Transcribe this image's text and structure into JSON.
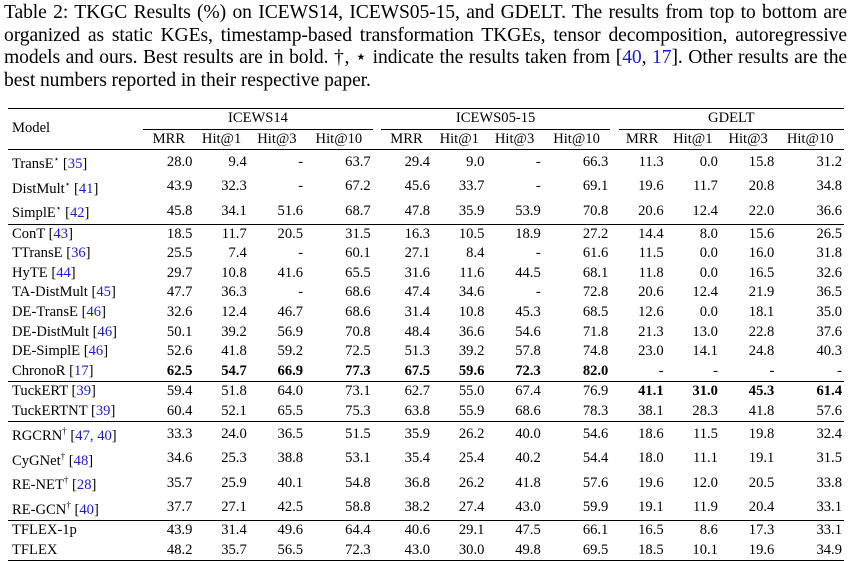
{
  "caption": {
    "part1": "Table 2: TKGC Results (%) on ICEWS14, ICEWS05-15, and GDELT. The results from top to bottom are organized as static KGEs, timestamp-based transformation TKGEs, tensor decomposition, autoregressive models and ours. Best results are in bold. †, ⋆ indicate the results taken from [",
    "ref1": "40",
    "sep": ", ",
    "ref2": "17",
    "part2": "]. Other results are the best numbers reported in their respective paper."
  },
  "table": {
    "model_header": "Model",
    "datasets": [
      "ICEWS14",
      "ICEWS05-15",
      "GDELT"
    ],
    "metrics": [
      "MRR",
      "Hit@1",
      "Hit@3",
      "Hit@10"
    ],
    "groups": [
      [
        {
          "name": "TransE",
          "sup": "⋆",
          "ref": "35",
          "vals": [
            "28.0",
            "9.4",
            "-",
            "63.7",
            "29.4",
            "9.0",
            "-",
            "66.3",
            "11.3",
            "0.0",
            "15.8",
            "31.2"
          ],
          "bold": []
        },
        {
          "name": "DistMult",
          "sup": "⋆",
          "ref": "41",
          "vals": [
            "43.9",
            "32.3",
            "-",
            "67.2",
            "45.6",
            "33.7",
            "-",
            "69.1",
            "19.6",
            "11.7",
            "20.8",
            "34.8"
          ],
          "bold": []
        },
        {
          "name": "SimplE",
          "sup": "⋆",
          "ref": "42",
          "vals": [
            "45.8",
            "34.1",
            "51.6",
            "68.7",
            "47.8",
            "35.9",
            "53.9",
            "70.8",
            "20.6",
            "12.4",
            "22.0",
            "36.6"
          ],
          "bold": []
        }
      ],
      [
        {
          "name": "ConT",
          "sup": "",
          "ref": "43",
          "vals": [
            "18.5",
            "11.7",
            "20.5",
            "31.5",
            "16.3",
            "10.5",
            "18.9",
            "27.2",
            "14.4",
            "8.0",
            "15.6",
            "26.5"
          ],
          "bold": []
        },
        {
          "name": "TTransE",
          "sup": "",
          "ref": "36",
          "vals": [
            "25.5",
            "7.4",
            "-",
            "60.1",
            "27.1",
            "8.4",
            "-",
            "61.6",
            "11.5",
            "0.0",
            "16.0",
            "31.8"
          ],
          "bold": []
        },
        {
          "name": "HyTE",
          "sup": "",
          "ref": "44",
          "vals": [
            "29.7",
            "10.8",
            "41.6",
            "65.5",
            "31.6",
            "11.6",
            "44.5",
            "68.1",
            "11.8",
            "0.0",
            "16.5",
            "32.6"
          ],
          "bold": []
        },
        {
          "name": "TA-DistMult",
          "sup": "",
          "ref": "45",
          "vals": [
            "47.7",
            "36.3",
            "-",
            "68.6",
            "47.4",
            "34.6",
            "-",
            "72.8",
            "20.6",
            "12.4",
            "21.9",
            "36.5"
          ],
          "bold": []
        },
        {
          "name": "DE-TransE",
          "sup": "",
          "ref": "46",
          "vals": [
            "32.6",
            "12.4",
            "46.7",
            "68.6",
            "31.4",
            "10.8",
            "45.3",
            "68.5",
            "12.6",
            "0.0",
            "18.1",
            "35.0"
          ],
          "bold": []
        },
        {
          "name": "DE-DistMult",
          "sup": "",
          "ref": "46",
          "vals": [
            "50.1",
            "39.2",
            "56.9",
            "70.8",
            "48.4",
            "36.6",
            "54.6",
            "71.8",
            "21.3",
            "13.0",
            "22.8",
            "37.6"
          ],
          "bold": []
        },
        {
          "name": "DE-SimplE",
          "sup": "",
          "ref": "46",
          "vals": [
            "52.6",
            "41.8",
            "59.2",
            "72.5",
            "51.3",
            "39.2",
            "57.8",
            "74.8",
            "23.0",
            "14.1",
            "24.8",
            "40.3"
          ],
          "bold": []
        },
        {
          "name": "ChronoR",
          "sup": "",
          "ref": "17",
          "vals": [
            "62.5",
            "54.7",
            "66.9",
            "77.3",
            "67.5",
            "59.6",
            "72.3",
            "82.0",
            "-",
            "-",
            "-",
            "-"
          ],
          "bold": [
            0,
            1,
            2,
            3,
            4,
            5,
            6,
            7
          ]
        }
      ],
      [
        {
          "name": "TuckERT",
          "sup": "",
          "ref": "39",
          "vals": [
            "59.4",
            "51.8",
            "64.0",
            "73.1",
            "62.7",
            "55.0",
            "67.4",
            "76.9",
            "41.1",
            "31.0",
            "45.3",
            "61.4"
          ],
          "bold": [
            8,
            9,
            10,
            11
          ]
        },
        {
          "name": "TuckERTNT",
          "sup": "",
          "ref": "39",
          "vals": [
            "60.4",
            "52.1",
            "65.5",
            "75.3",
            "63.8",
            "55.9",
            "68.6",
            "78.3",
            "38.1",
            "28.3",
            "41.8",
            "57.6"
          ],
          "bold": []
        }
      ],
      [
        {
          "name": "RGCRN",
          "sup": "†",
          "ref": "47, 40",
          "vals": [
            "33.3",
            "24.0",
            "36.5",
            "51.5",
            "35.9",
            "26.2",
            "40.0",
            "54.6",
            "18.6",
            "11.5",
            "19.8",
            "32.4"
          ],
          "bold": []
        },
        {
          "name": "CyGNet",
          "sup": "†",
          "ref": "48",
          "vals": [
            "34.6",
            "25.3",
            "38.8",
            "53.1",
            "35.4",
            "25.4",
            "40.2",
            "54.4",
            "18.0",
            "11.1",
            "19.1",
            "31.5"
          ],
          "bold": []
        },
        {
          "name": "RE-NET",
          "sup": "†",
          "ref": "28",
          "vals": [
            "35.7",
            "25.9",
            "40.1",
            "54.8",
            "36.8",
            "26.2",
            "41.8",
            "57.6",
            "19.6",
            "12.0",
            "20.5",
            "33.8"
          ],
          "bold": []
        },
        {
          "name": "RE-GCN",
          "sup": "†",
          "ref": "40",
          "vals": [
            "37.7",
            "27.1",
            "42.5",
            "58.8",
            "38.2",
            "27.4",
            "43.0",
            "59.9",
            "19.1",
            "11.9",
            "20.4",
            "33.1"
          ],
          "bold": []
        }
      ],
      [
        {
          "name": "TFLEX-1p",
          "sup": "",
          "ref": "",
          "vals": [
            "43.9",
            "31.4",
            "49.6",
            "64.4",
            "40.6",
            "29.1",
            "47.5",
            "66.1",
            "16.5",
            "8.6",
            "17.3",
            "33.1"
          ],
          "bold": []
        },
        {
          "name": "TFLEX",
          "sup": "",
          "ref": "",
          "vals": [
            "48.2",
            "35.7",
            "56.5",
            "72.3",
            "43.0",
            "30.0",
            "49.8",
            "69.5",
            "18.5",
            "10.1",
            "19.6",
            "34.9"
          ],
          "bold": []
        }
      ]
    ]
  }
}
